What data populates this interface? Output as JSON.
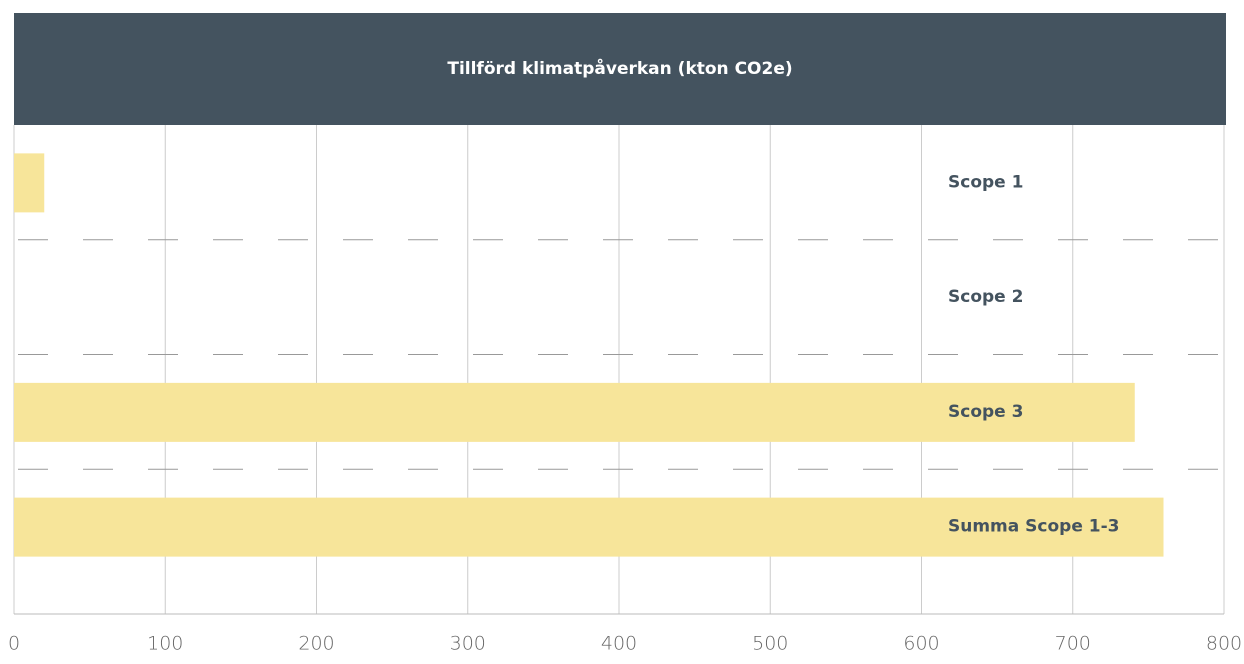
{
  "chart_data": {
    "type": "hbar",
    "title": "Tillförd klimatpåverkan (kton CO2e)",
    "categories": [
      "Scope 1",
      "Scope 2",
      "Scope 3",
      "Summa Scope 1-3"
    ],
    "values": [
      20,
      0,
      741,
      760
    ],
    "color": "#f7e59a",
    "xlim": [
      0,
      800
    ],
    "xticks": [
      0,
      100,
      200,
      300,
      400,
      500,
      600,
      700,
      800
    ],
    "grid": true
  }
}
